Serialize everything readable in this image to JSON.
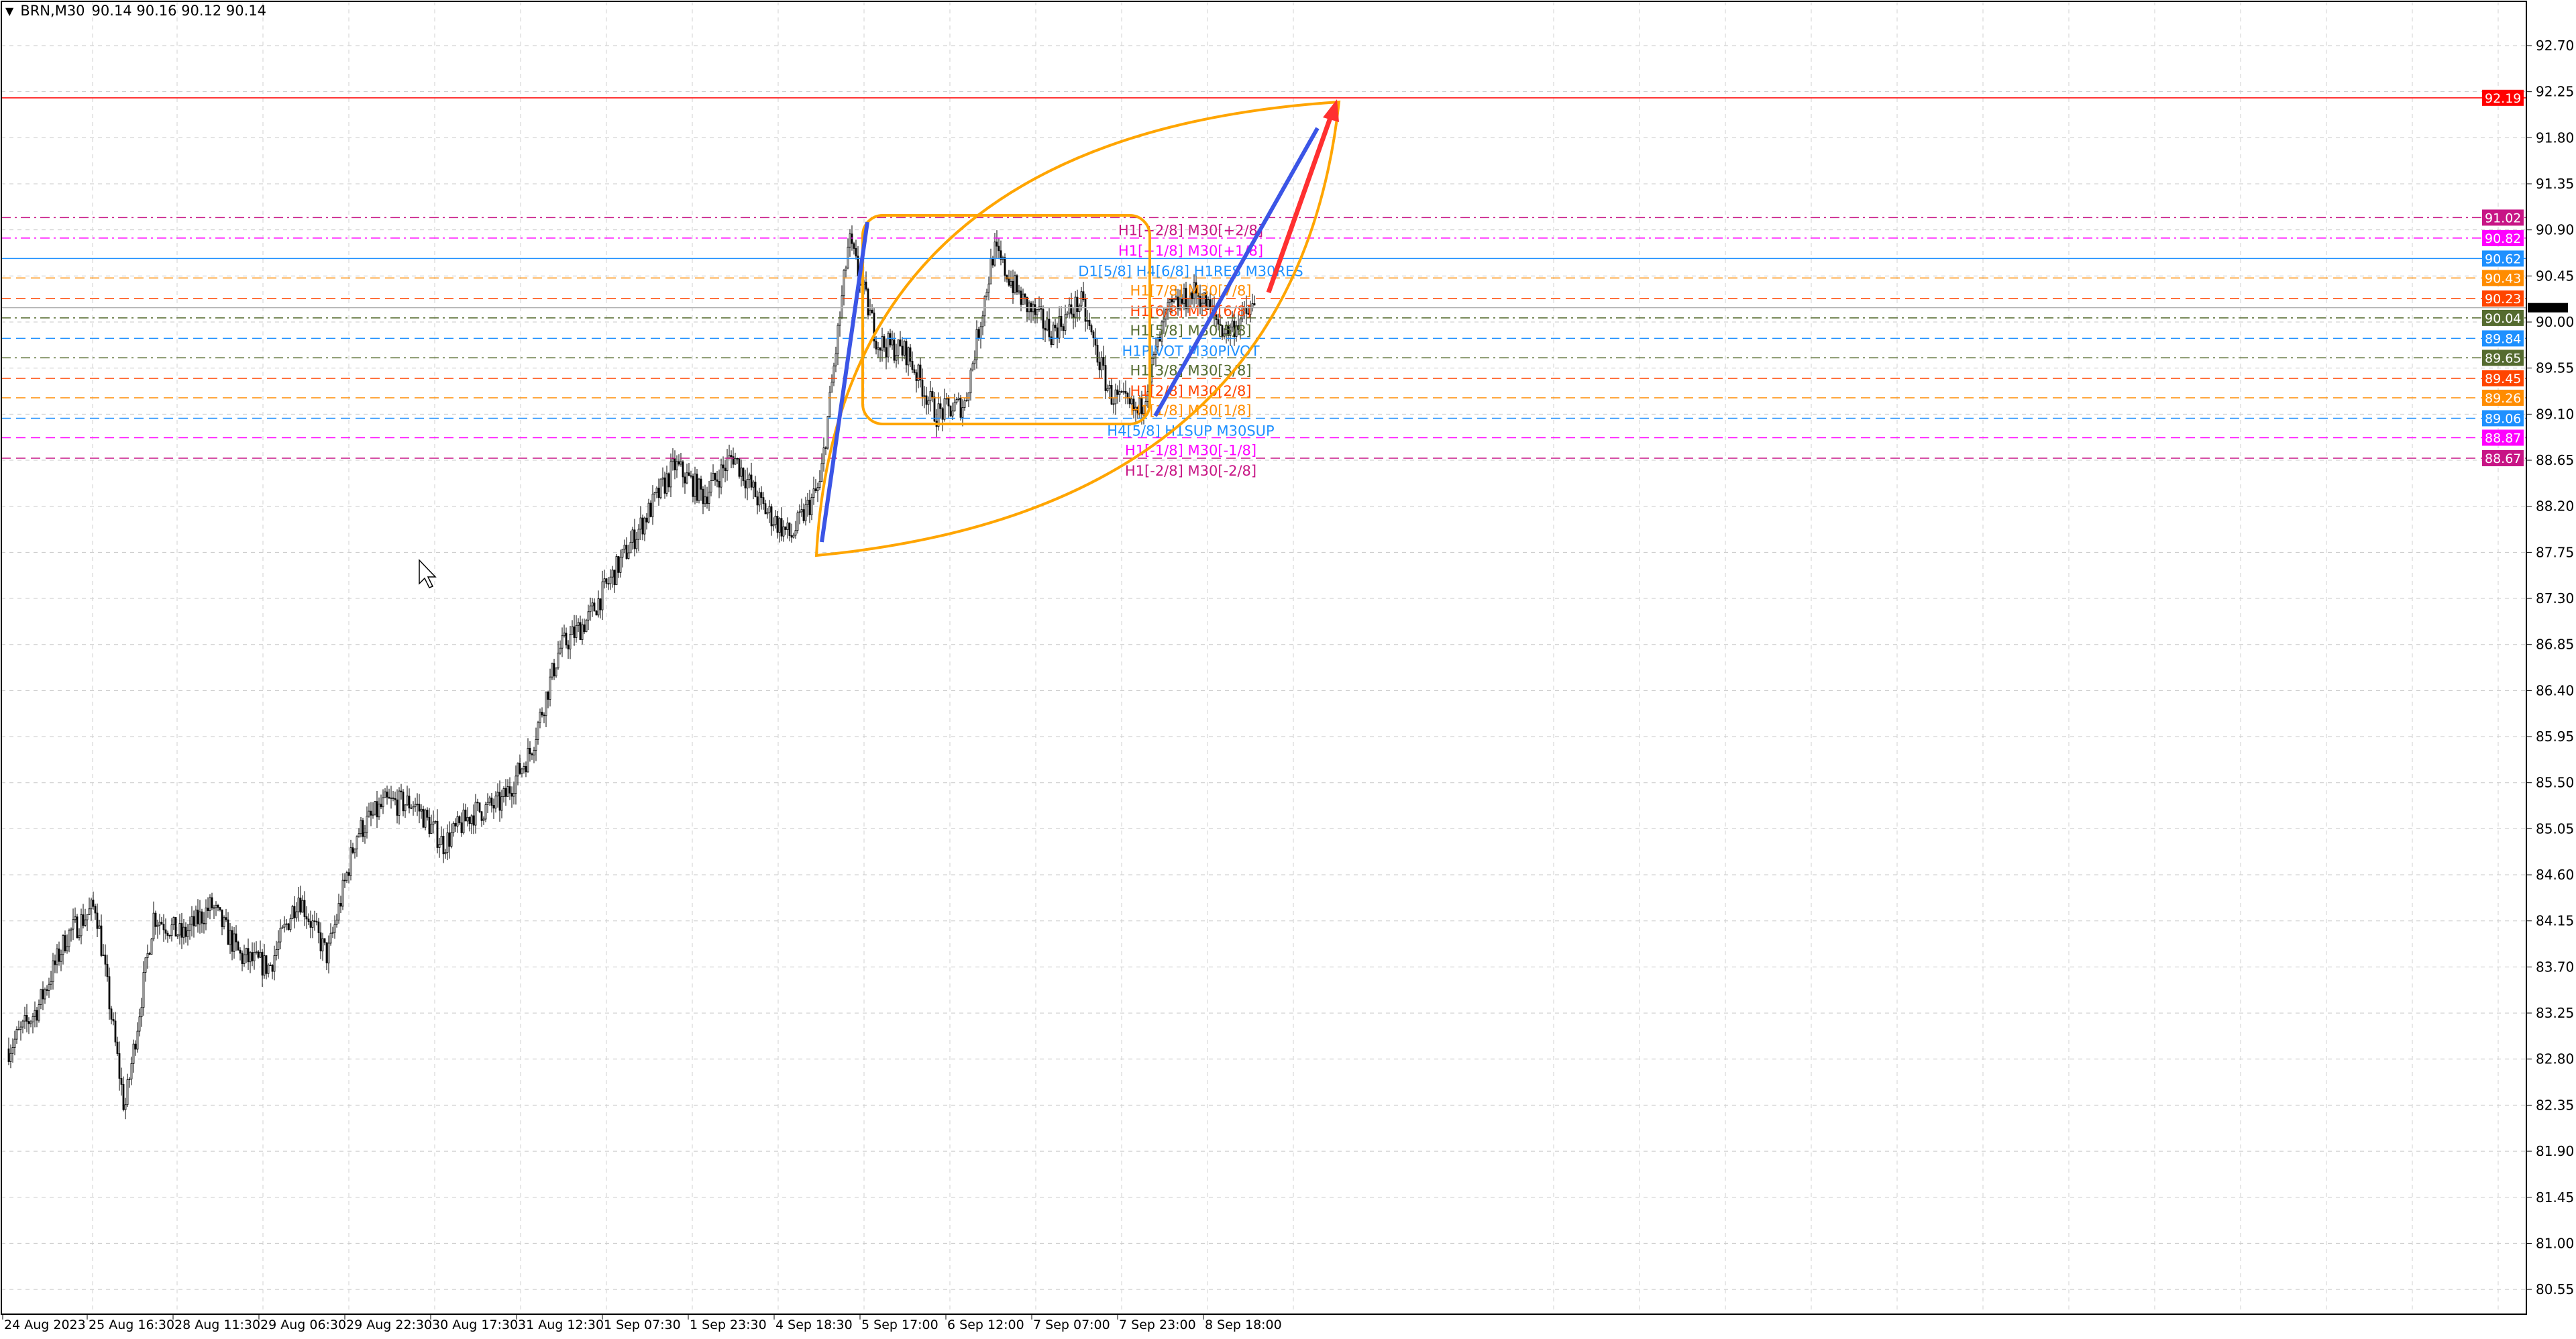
{
  "header": {
    "symbol": "BRN,M30",
    "ohlc": "90.14 90.16 90.12 90.14"
  },
  "chart_data": {
    "type": "candlestick",
    "symbol": "BRN",
    "timeframe": "M30",
    "ylim": [
      80.3,
      93.15
    ],
    "y_ticks": [
      "92.70",
      "92.25",
      "91.80",
      "91.35",
      "90.90",
      "90.45",
      "90.00",
      "89.55",
      "89.10",
      "88.65",
      "88.20",
      "87.75",
      "87.30",
      "86.85",
      "86.40",
      "85.95",
      "85.50",
      "85.05",
      "84.60",
      "84.15",
      "83.70",
      "83.25",
      "82.80",
      "82.35",
      "81.90",
      "81.45",
      "81.00",
      "80.55"
    ],
    "x_ticks": [
      "24 Aug 2023",
      "25 Aug 16:30",
      "28 Aug 11:30",
      "29 Aug 06:30",
      "29 Aug 22:30",
      "30 Aug 17:30",
      "31 Aug 12:30",
      "1 Sep 07:30",
      "1 Sep 23:30",
      "4 Sep 18:30",
      "5 Sep 17:00",
      "6 Sep 12:00",
      "7 Sep 07:00",
      "7 Sep 23:00",
      "8 Sep 18:00"
    ],
    "approx_close_path": [
      82.9,
      83.3,
      84.0,
      84.3,
      82.3,
      84.2,
      84.0,
      84.3,
      83.8,
      83.7,
      84.4,
      83.8,
      85.0,
      85.3,
      85.3,
      84.9,
      85.2,
      85.3,
      85.8,
      86.8,
      87.1,
      87.6,
      88.1,
      88.6,
      88.3,
      88.7,
      88.2,
      87.9,
      88.4,
      90.8,
      89.8,
      89.7,
      89.1,
      89.2,
      90.7,
      90.2,
      89.9,
      90.2,
      89.3,
      89.1,
      90.1,
      90.3,
      89.9,
      90.14
    ],
    "current_price": {
      "value": "90.14",
      "color": "#000000"
    },
    "target_line": {
      "value": "92.19",
      "color": "#ff0000"
    },
    "levels": [
      {
        "price": "91.02",
        "label": "H1[+2/8] M30[+2/8]",
        "color": "#c71585",
        "dash": "dashdot"
      },
      {
        "price": "90.82",
        "label": "H1[+1/8] M30[+1/8]",
        "color": "#ff00ff",
        "dash": "dashdot"
      },
      {
        "price": "90.62",
        "label": "D1[5/8] H4[6/8] H1RES M30RES",
        "color": "#1e90ff",
        "dash": "solid"
      },
      {
        "price": "90.43",
        "label": "H1[7/8] M30[7/8]",
        "color": "#ff8c00",
        "dash": "dash"
      },
      {
        "price": "90.23",
        "label": "H1[6/8] M30[6/8]",
        "color": "#ff4500",
        "dash": "dash"
      },
      {
        "price": "90.04",
        "label": "H1[5/8] M30[5/8]",
        "color": "#556b2f",
        "dash": "dashdot"
      },
      {
        "price": "89.84",
        "label": "H1PIVOT M30PIVOT",
        "color": "#1e90ff",
        "dash": "dash"
      },
      {
        "price": "89.65",
        "label": "H1[3/8] M30[3/8]",
        "color": "#556b2f",
        "dash": "dashdot"
      },
      {
        "price": "89.45",
        "label": "H1[2/8] M30[2/8]",
        "color": "#ff4500",
        "dash": "dash"
      },
      {
        "price": "89.26",
        "label": "H1[1/8] M30[1/8]",
        "color": "#ff8c00",
        "dash": "dash"
      },
      {
        "price": "89.06",
        "label": "H4[5/8] H1SUP M30SUP",
        "color": "#1e90ff",
        "dash": "dash"
      },
      {
        "price": "88.87",
        "label": "H1[-1/8] M30[-1/8]",
        "color": "#ff00ff",
        "dash": "dash"
      },
      {
        "price": "88.67",
        "label": "H1[-2/8] M30[-2/8]",
        "color": "#c71585",
        "dash": "dash"
      }
    ],
    "drawings": {
      "box_color": "#ffa500",
      "trend_color": "#3b55e6",
      "arrow_color": "#ff3030"
    }
  }
}
